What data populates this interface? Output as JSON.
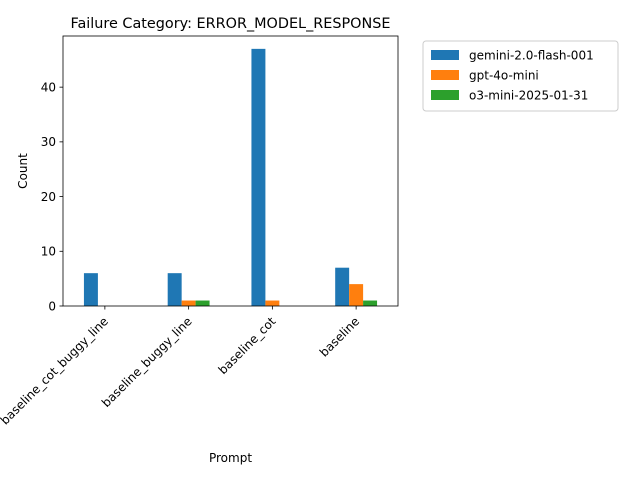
{
  "chart_data": {
    "type": "bar",
    "title": "Failure Category: ERROR_MODEL_RESPONSE",
    "xlabel": "Prompt",
    "ylabel": "Count",
    "categories": [
      "baseline_cot_buggy_line",
      "baseline_buggy_line",
      "baseline_cot",
      "baseline"
    ],
    "series": [
      {
        "name": "gemini-2.0-flash-001",
        "color": "#1f77b4",
        "values": [
          6,
          6,
          47,
          7
        ]
      },
      {
        "name": "gpt-4o-mini",
        "color": "#ff7f0e",
        "values": [
          0,
          1,
          1,
          4
        ]
      },
      {
        "name": "o3-mini-2025-01-31",
        "color": "#2ca02c",
        "values": [
          0,
          1,
          0,
          1
        ]
      }
    ],
    "ylim": [
      0,
      49.35
    ],
    "yticks": [
      0,
      10,
      20,
      30,
      40
    ],
    "x_tick_rotation": 45,
    "grid": false,
    "legend_position": "outside upper right"
  }
}
